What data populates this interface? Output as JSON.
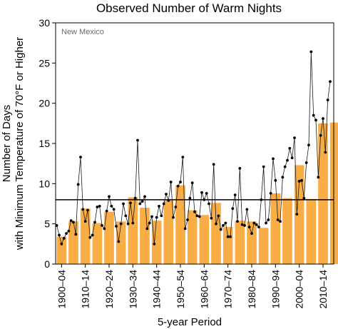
{
  "chart_data": {
    "type": "bar",
    "title": "Observed Number of Warm Nights",
    "region": "New Mexico",
    "xlabel": "5-year Period",
    "ylabel": "Number of Days\nwith Minimum Temperature of 70°F or Higher",
    "ylim": [
      0,
      30
    ],
    "yticks": [
      0,
      5,
      10,
      15,
      20,
      25,
      30
    ],
    "reference_line": 8.0,
    "categories": [
      "1900–04",
      "1905–09",
      "1910–14",
      "1915–19",
      "1920–24",
      "1925–29",
      "1930–34",
      "1935–39",
      "1940–44",
      "1945–49",
      "1950–54",
      "1955–59",
      "1960–64",
      "1965–69",
      "1970–74",
      "1975–79",
      "1980–84",
      "1985–89",
      "1990–94",
      "1995–99",
      "2000–04",
      "2005–09",
      "2010–14",
      "2015–19"
    ],
    "tick_labels": [
      "1900–04",
      "1910–14",
      "1920–24",
      "1930–34",
      "1940–44",
      "1950–54",
      "1960–64",
      "1970–74",
      "1980–84",
      "1990–94",
      "2000–04",
      "2010–14"
    ],
    "bar_values": [
      3.4,
      5.3,
      6.9,
      5.1,
      6.5,
      5.3,
      8.3,
      7.0,
      5.4,
      7.9,
      9.8,
      6.7,
      6.1,
      7.6,
      4.6,
      5.4,
      5.3,
      4.5,
      8.8,
      8.2,
      12.3,
      8.1,
      17.5,
      17.6
    ],
    "annual": {
      "start_year": 1900,
      "values": [
        4.8,
        3.6,
        2.5,
        3.2,
        3.8,
        4.1,
        5.4,
        5.2,
        3.7,
        9.9,
        13.3,
        6.8,
        5.3,
        6.7,
        3.3,
        3.6,
        5.2,
        7.1,
        7.2,
        4.8,
        4.4,
        6.6,
        8.4,
        7.2,
        6.8,
        4.7,
        2.8,
        5.0,
        7.5,
        6.0,
        5.0,
        7.6,
        5.1,
        8.2,
        15.4,
        7.5,
        7.8,
        8.4,
        4.4,
        5.1,
        5.9,
        2.5,
        5.8,
        7.2,
        6.0,
        7.5,
        8.7,
        7.9,
        10.2,
        5.8,
        7.1,
        9.7,
        10.2,
        13.3,
        4.4,
        5.5,
        8.2,
        10.1,
        6.5,
        6.0,
        5.9,
        8.9,
        8.0,
        8.8,
        7.5,
        5.7,
        12.4,
        5.0,
        6.0,
        4.3,
        4.8,
        5.1,
        3.4,
        3.4,
        6.9,
        8.6,
        5.3,
        11.9,
        4.9,
        4.8,
        6.8,
        4.6,
        3.8,
        5.1,
        4.9,
        4.6,
        8.0,
        12.1,
        5.1,
        5.5,
        8.8,
        13.1,
        10.4,
        5.5,
        5.3,
        10.8,
        12.1,
        12.9,
        14.4,
        13.2,
        15.7,
        6.2,
        10.3,
        10.4,
        8.2,
        12.6,
        14.8,
        26.4,
        18.5,
        17.9,
        10.8,
        16.0,
        18.1,
        13.9,
        20.4,
        22.7
      ]
    },
    "grid": false
  },
  "colors": {
    "bar": "#F9AD45",
    "line": "#1a1a1a",
    "marker": "#000000",
    "reference": "#000000",
    "region_label": "#6b6b6b"
  }
}
